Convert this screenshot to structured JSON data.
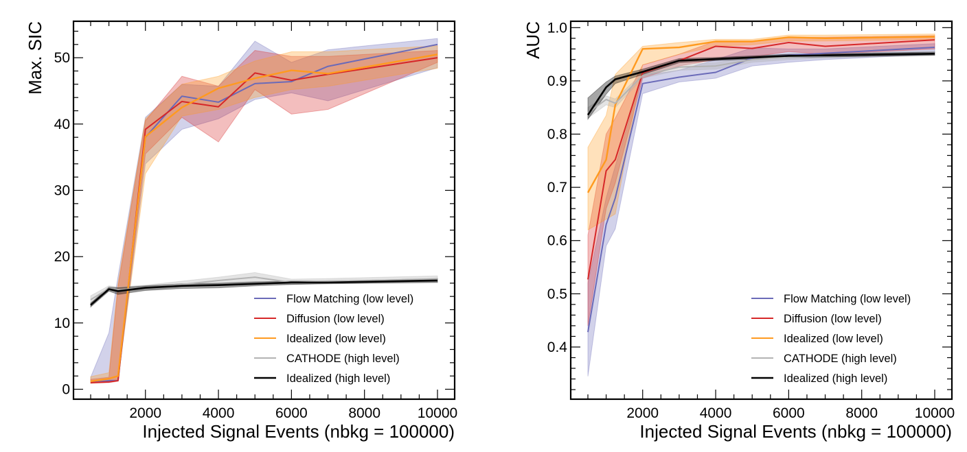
{
  "chart_data": [
    {
      "type": "line",
      "title": "",
      "xlabel": "Injected Signal Events (nbkg = 100000)",
      "ylabel": "Max. SIC",
      "xlim": [
        0,
        10300
      ],
      "ylim": [
        -1.5,
        55.5
      ],
      "xticks": [
        2000,
        4000,
        6000,
        8000,
        10000
      ],
      "xtick_labels": [
        "2000",
        "4000",
        "6000",
        "8000",
        "10000"
      ],
      "yticks": [
        0,
        10,
        20,
        30,
        40,
        50
      ],
      "ytick_labels": [
        "0",
        "10",
        "20",
        "30",
        "40",
        "50"
      ],
      "grid": false,
      "legend_position": "lower-right",
      "series": [
        {
          "name": "Flow Matching (low level)",
          "color": "#6a6ab8",
          "x": [
            500,
            1000,
            1250,
            2000,
            3000,
            4000,
            5000,
            6000,
            7000,
            10000
          ],
          "y": [
            1.0,
            1.3,
            1.3,
            38.0,
            44.2,
            43.3,
            46.1,
            46.4,
            48.7,
            52.0
          ],
          "band_low": [
            1.0,
            1.3,
            1.3,
            34.0,
            39.2,
            40.8,
            43.7,
            44.7,
            43.5,
            48.5
          ],
          "band_high": [
            1.8,
            8.5,
            17.0,
            41.0,
            46.0,
            45.7,
            52.5,
            49.3,
            51.2,
            52.9
          ]
        },
        {
          "name": "Diffusion (low level)",
          "color": "#d62728",
          "x": [
            500,
            1000,
            1250,
            2000,
            3000,
            4000,
            5000,
            6000,
            7000,
            10000
          ],
          "y": [
            1.0,
            1.1,
            1.3,
            39.2,
            43.4,
            42.6,
            47.7,
            46.6,
            47.5,
            50.0
          ],
          "band_low": [
            0.9,
            1.0,
            1.2,
            35.5,
            41.0,
            37.3,
            45.2,
            41.5,
            42.2,
            49.3
          ],
          "band_high": [
            1.5,
            1.8,
            15.5,
            40.5,
            47.2,
            45.7,
            51.1,
            50.2,
            50.2,
            51.1
          ]
        },
        {
          "name": "Idealized (low level)",
          "color": "#ff9a1f",
          "x": [
            500,
            1000,
            1250,
            2000,
            3000,
            4000,
            5000,
            6000,
            7000,
            10000
          ],
          "y": [
            1.2,
            1.6,
            2.0,
            38.1,
            42.5,
            45.4,
            46.9,
            48.1,
            47.6,
            50.5
          ],
          "band_low": [
            0.9,
            1.1,
            1.5,
            32.5,
            41.2,
            42.2,
            44.0,
            45.2,
            45.7,
            48.4
          ],
          "band_high": [
            1.9,
            2.5,
            16.0,
            40.8,
            46.0,
            47.2,
            49.5,
            50.9,
            50.9,
            51.8
          ]
        },
        {
          "name": "CATHODE (high level)",
          "color": "#b3b3b3",
          "x": [
            500,
            1000,
            1250,
            2000,
            3000,
            4000,
            5000,
            6000,
            7000,
            10000
          ],
          "y": [
            13.5,
            15.2,
            15.0,
            15.3,
            15.8,
            16.4,
            16.9,
            16.1,
            16.3,
            16.6
          ],
          "band_low": [
            13.0,
            14.8,
            14.6,
            15.0,
            15.4,
            15.8,
            16.0,
            15.8,
            16.0,
            16.2
          ],
          "band_high": [
            14.1,
            15.6,
            15.4,
            15.7,
            16.3,
            16.9,
            17.6,
            16.6,
            16.7,
            17.1
          ]
        },
        {
          "name": "Idealized (high level)",
          "color": "#000000",
          "x": [
            500,
            1000,
            1250,
            2000,
            3000,
            4000,
            5000,
            6000,
            7000,
            10000
          ],
          "y": [
            12.7,
            15.1,
            14.8,
            15.3,
            15.6,
            15.7,
            15.9,
            16.1,
            16.1,
            16.4
          ],
          "band_low": [
            12.4,
            14.8,
            14.3,
            14.9,
            15.2,
            15.3,
            15.6,
            15.8,
            15.9,
            16.1
          ],
          "band_high": [
            13.0,
            15.4,
            15.3,
            15.6,
            15.9,
            16.0,
            16.2,
            16.3,
            16.3,
            16.7
          ]
        }
      ]
    },
    {
      "type": "line",
      "title": "",
      "xlabel": "Injected Signal Events (nbkg = 100000)",
      "ylabel": "AUC",
      "xlim": [
        0,
        10300
      ],
      "ylim": [
        0.302,
        1.012
      ],
      "xticks": [
        2000,
        4000,
        6000,
        8000,
        10000
      ],
      "xtick_labels": [
        "2000",
        "4000",
        "6000",
        "8000",
        "10000"
      ],
      "yticks": [
        0.4,
        0.5,
        0.6,
        0.7,
        0.8,
        0.9,
        1.0
      ],
      "ytick_labels": [
        "0.4",
        "0.5",
        "0.6",
        "0.7",
        "0.8",
        "0.9",
        "1.0"
      ],
      "grid": false,
      "legend_position": "lower-right",
      "series": [
        {
          "name": "Flow Matching (low level)",
          "color": "#6a6ab8",
          "x": [
            500,
            1000,
            1250,
            2000,
            3000,
            4000,
            5000,
            6000,
            7000,
            10000
          ],
          "y": [
            0.428,
            0.63,
            0.68,
            0.895,
            0.907,
            0.916,
            0.943,
            0.948,
            0.952,
            0.963
          ],
          "band_low": [
            0.345,
            0.59,
            0.622,
            0.876,
            0.898,
            0.905,
            0.928,
            0.935,
            0.94,
            0.95
          ],
          "band_high": [
            0.52,
            0.68,
            0.74,
            0.91,
            0.92,
            0.94,
            0.962,
            0.96,
            0.96,
            0.97
          ]
        },
        {
          "name": "Diffusion (low level)",
          "color": "#d62728",
          "x": [
            500,
            1000,
            1250,
            2000,
            3000,
            4000,
            5000,
            6000,
            7000,
            10000
          ],
          "y": [
            0.527,
            0.731,
            0.752,
            0.915,
            0.938,
            0.965,
            0.961,
            0.972,
            0.965,
            0.977
          ],
          "band_low": [
            0.44,
            0.66,
            0.708,
            0.905,
            0.928,
            0.94,
            0.945,
            0.955,
            0.95,
            0.96
          ],
          "band_high": [
            0.61,
            0.8,
            0.83,
            0.93,
            0.95,
            0.975,
            0.975,
            0.982,
            0.982,
            0.985
          ]
        },
        {
          "name": "Idealized (low level)",
          "color": "#ff9a1f",
          "x": [
            500,
            1000,
            1250,
            2000,
            3000,
            4000,
            5000,
            6000,
            7000,
            10000
          ],
          "y": [
            0.69,
            0.752,
            0.855,
            0.96,
            0.963,
            0.974,
            0.974,
            0.982,
            0.98,
            0.983
          ],
          "band_low": [
            0.62,
            0.64,
            0.65,
            0.93,
            0.95,
            0.965,
            0.968,
            0.975,
            0.975,
            0.978
          ],
          "band_high": [
            0.775,
            0.835,
            0.912,
            0.965,
            0.972,
            0.978,
            0.978,
            0.986,
            0.986,
            0.988
          ]
        },
        {
          "name": "CATHODE (high level)",
          "color": "#b3b3b3",
          "x": [
            500,
            1000,
            1250,
            2000,
            3000,
            4000,
            5000,
            6000,
            7000,
            10000
          ],
          "y": [
            0.84,
            0.865,
            0.858,
            0.91,
            0.926,
            0.928,
            0.94,
            0.945,
            0.947,
            0.952
          ],
          "band_low": [
            0.83,
            0.855,
            0.85,
            0.905,
            0.92,
            0.922,
            0.935,
            0.94,
            0.943,
            0.948
          ],
          "band_high": [
            0.85,
            0.872,
            0.866,
            0.915,
            0.932,
            0.934,
            0.945,
            0.95,
            0.951,
            0.956
          ]
        },
        {
          "name": "Idealized (high level)",
          "color": "#000000",
          "x": [
            500,
            1000,
            1250,
            2000,
            3000,
            4000,
            5000,
            6000,
            7000,
            10000
          ],
          "y": [
            0.836,
            0.888,
            0.903,
            0.917,
            0.938,
            0.941,
            0.944,
            0.947,
            0.948,
            0.951
          ],
          "band_low": [
            0.828,
            0.875,
            0.895,
            0.912,
            0.934,
            0.938,
            0.941,
            0.944,
            0.945,
            0.948
          ],
          "band_high": [
            0.868,
            0.898,
            0.909,
            0.922,
            0.942,
            0.944,
            0.947,
            0.95,
            0.951,
            0.954
          ]
        }
      ]
    }
  ]
}
